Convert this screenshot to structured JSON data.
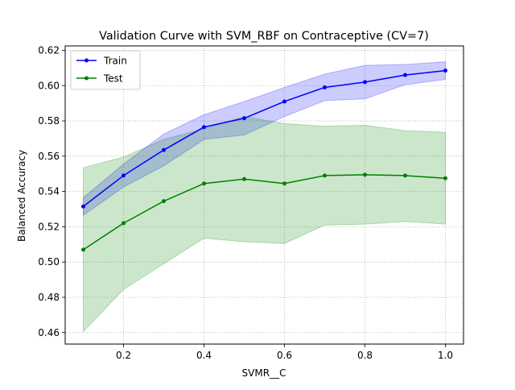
{
  "chart_data": {
    "type": "line",
    "title": "Validation Curve with SVM_RBF on Contraceptive (CV=7)",
    "xlabel": "SVMR__C",
    "ylabel": "Balanced Accuracy",
    "x": [
      0.1,
      0.2,
      0.3,
      0.4,
      0.5,
      0.6,
      0.7,
      0.8,
      0.9,
      1.0
    ],
    "xlim": [
      0.055,
      1.045
    ],
    "ylim": [
      0.4535,
      0.6225
    ],
    "xticks": [
      0.2,
      0.4,
      0.6,
      0.8,
      1.0
    ],
    "xtick_labels": [
      "0.2",
      "0.4",
      "0.6",
      "0.8",
      "1.0"
    ],
    "yticks": [
      0.46,
      0.48,
      0.5,
      0.52,
      0.54,
      0.56,
      0.58,
      0.6,
      0.62
    ],
    "ytick_labels": [
      "0.46",
      "0.48",
      "0.50",
      "0.52",
      "0.54",
      "0.56",
      "0.58",
      "0.60",
      "0.62"
    ],
    "grid": true,
    "legend_position": "top-left",
    "series": [
      {
        "name": "Train",
        "color": "#0000ff",
        "values": [
          0.5315,
          0.549,
          0.5635,
          0.5765,
          0.5815,
          0.591,
          0.599,
          0.602,
          0.606,
          0.6085
        ],
        "band_lower": [
          0.5265,
          0.5425,
          0.5545,
          0.5695,
          0.572,
          0.5825,
          0.5915,
          0.5925,
          0.6005,
          0.6035
        ],
        "band_upper": [
          0.5365,
          0.5555,
          0.5725,
          0.5835,
          0.591,
          0.599,
          0.6065,
          0.6115,
          0.612,
          0.6135
        ]
      },
      {
        "name": "Test",
        "color": "#008000",
        "values": [
          0.507,
          0.522,
          0.5345,
          0.5445,
          0.547,
          0.5445,
          0.549,
          0.5495,
          0.549,
          0.5475
        ],
        "band_lower": [
          0.4605,
          0.4845,
          0.499,
          0.5135,
          0.5115,
          0.5105,
          0.521,
          0.5215,
          0.523,
          0.5215
        ],
        "band_upper": [
          0.5535,
          0.5595,
          0.5695,
          0.5755,
          0.5825,
          0.5785,
          0.577,
          0.5775,
          0.5745,
          0.5735
        ]
      }
    ]
  }
}
